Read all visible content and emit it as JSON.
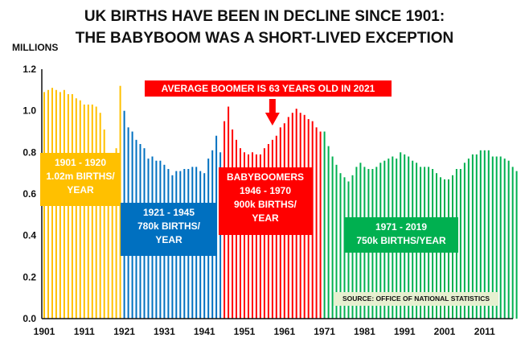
{
  "title_line1": "UK BIRTHS HAVE BEEN IN DECLINE SINCE 1901:",
  "title_line2": "THE BABYBOOM WAS A SHORT-LIVED EXCEPTION",
  "annotation": "AVERAGE BOOMER IS 63 YEARS OLD IN 2021",
  "source": "SOURCE: OFFICE OF NATIONAL STATISTICS",
  "period_labels": [
    {
      "line1": "1901 - 1920",
      "line2": "1.02m BIRTHS/",
      "line3": "YEAR"
    },
    {
      "line1": "1921 - 1945",
      "line2": "780k BIRTHS/",
      "line3": "YEAR"
    },
    {
      "line1": "BABYBOOMERS",
      "line2": "1946 - 1970",
      "line3": "900k BIRTHS/",
      "line4": "YEAR"
    },
    {
      "line1": "1971 - 2019",
      "line2": "750k BIRTHS/YEAR"
    }
  ],
  "colors": {
    "gold": "#ffc000",
    "blue": "#0070c0",
    "red": "#ff0000",
    "green": "#00b050",
    "arrow": "#ff0000"
  },
  "chart_data": {
    "type": "bar",
    "ylabel": "MILLIONS",
    "ylim": [
      0,
      1.2
    ],
    "yticks": [
      "0.0",
      "0.2",
      "0.4",
      "0.6",
      "0.8",
      "1.0",
      "1.2"
    ],
    "ytick_values": [
      0,
      0.2,
      0.4,
      0.6,
      0.8,
      1.0,
      1.2
    ],
    "xticks": [
      "1901",
      "1911",
      "1921",
      "1931",
      "1941",
      "1951",
      "1961",
      "1971",
      "1981",
      "1991",
      "2001",
      "2011"
    ],
    "x_start": 1901,
    "x_end": 2019,
    "grid": false,
    "series": [
      {
        "period": "1901-1920",
        "color": "gold",
        "x": [
          1901,
          1902,
          1903,
          1904,
          1905,
          1906,
          1907,
          1908,
          1909,
          1910,
          1911,
          1912,
          1913,
          1914,
          1915,
          1916,
          1917,
          1918,
          1919,
          1920
        ],
        "values": [
          1.09,
          1.1,
          1.11,
          1.1,
          1.09,
          1.1,
          1.08,
          1.08,
          1.06,
          1.05,
          1.03,
          1.03,
          1.03,
          1.02,
          0.99,
          0.91,
          0.78,
          0.78,
          0.82,
          1.12
        ]
      },
      {
        "period": "1921-1945",
        "color": "blue",
        "x": [
          1921,
          1922,
          1923,
          1924,
          1925,
          1926,
          1927,
          1928,
          1929,
          1930,
          1931,
          1932,
          1933,
          1934,
          1935,
          1936,
          1937,
          1938,
          1939,
          1940,
          1941,
          1942,
          1943,
          1944,
          1945
        ],
        "values": [
          1.0,
          0.92,
          0.9,
          0.86,
          0.84,
          0.82,
          0.77,
          0.78,
          0.76,
          0.76,
          0.74,
          0.72,
          0.69,
          0.71,
          0.71,
          0.72,
          0.72,
          0.73,
          0.73,
          0.71,
          0.7,
          0.77,
          0.81,
          0.88,
          0.8
        ]
      },
      {
        "period": "1946-1970",
        "color": "red",
        "x": [
          1946,
          1947,
          1948,
          1949,
          1950,
          1951,
          1952,
          1953,
          1954,
          1955,
          1956,
          1957,
          1958,
          1959,
          1960,
          1961,
          1962,
          1963,
          1964,
          1965,
          1966,
          1967,
          1968,
          1969,
          1970
        ],
        "values": [
          0.95,
          1.02,
          0.91,
          0.86,
          0.82,
          0.8,
          0.79,
          0.8,
          0.79,
          0.79,
          0.82,
          0.84,
          0.86,
          0.88,
          0.92,
          0.94,
          0.97,
          0.99,
          1.01,
          0.99,
          0.98,
          0.96,
          0.95,
          0.92,
          0.9
        ]
      },
      {
        "period": "1971-2019",
        "color": "green",
        "x": [
          1971,
          1972,
          1973,
          1974,
          1975,
          1976,
          1977,
          1978,
          1979,
          1980,
          1981,
          1982,
          1983,
          1984,
          1985,
          1986,
          1987,
          1988,
          1989,
          1990,
          1991,
          1992,
          1993,
          1994,
          1995,
          1996,
          1997,
          1998,
          1999,
          2000,
          2001,
          2002,
          2003,
          2004,
          2005,
          2006,
          2007,
          2008,
          2009,
          2010,
          2011,
          2012,
          2013,
          2014,
          2015,
          2016,
          2017,
          2018,
          2019
        ],
        "values": [
          0.9,
          0.83,
          0.78,
          0.74,
          0.7,
          0.68,
          0.66,
          0.69,
          0.73,
          0.75,
          0.73,
          0.72,
          0.72,
          0.73,
          0.75,
          0.76,
          0.77,
          0.78,
          0.77,
          0.8,
          0.79,
          0.78,
          0.76,
          0.75,
          0.73,
          0.73,
          0.73,
          0.72,
          0.7,
          0.68,
          0.67,
          0.67,
          0.69,
          0.72,
          0.72,
          0.75,
          0.77,
          0.79,
          0.79,
          0.81,
          0.81,
          0.81,
          0.78,
          0.78,
          0.78,
          0.77,
          0.76,
          0.73,
          0.71
        ]
      }
    ]
  }
}
